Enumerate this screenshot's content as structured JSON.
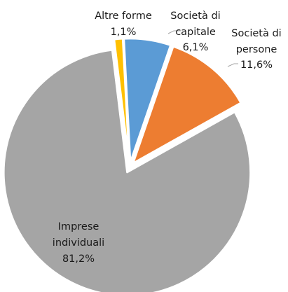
{
  "chart_data": {
    "type": "pie",
    "title": "",
    "start_angle_deg": -3,
    "exploded": true,
    "slices": [
      {
        "label_lines": [
          "Società di",
          "capitale"
        ],
        "value_label": "6,1%",
        "value": 6.1,
        "color": "#5b9bd5"
      },
      {
        "label_lines": [
          "Società di",
          "persone"
        ],
        "value_label": "11,6%",
        "value": 11.6,
        "color": "#ed7d31"
      },
      {
        "label_lines": [
          "Imprese",
          "individuali"
        ],
        "value_label": "81,2%",
        "value": 81.2,
        "color": "#a5a5a5"
      },
      {
        "label_lines": [
          "Altre forme"
        ],
        "value_label": "1,1%",
        "value": 1.1,
        "color": "#ffc000"
      }
    ]
  }
}
